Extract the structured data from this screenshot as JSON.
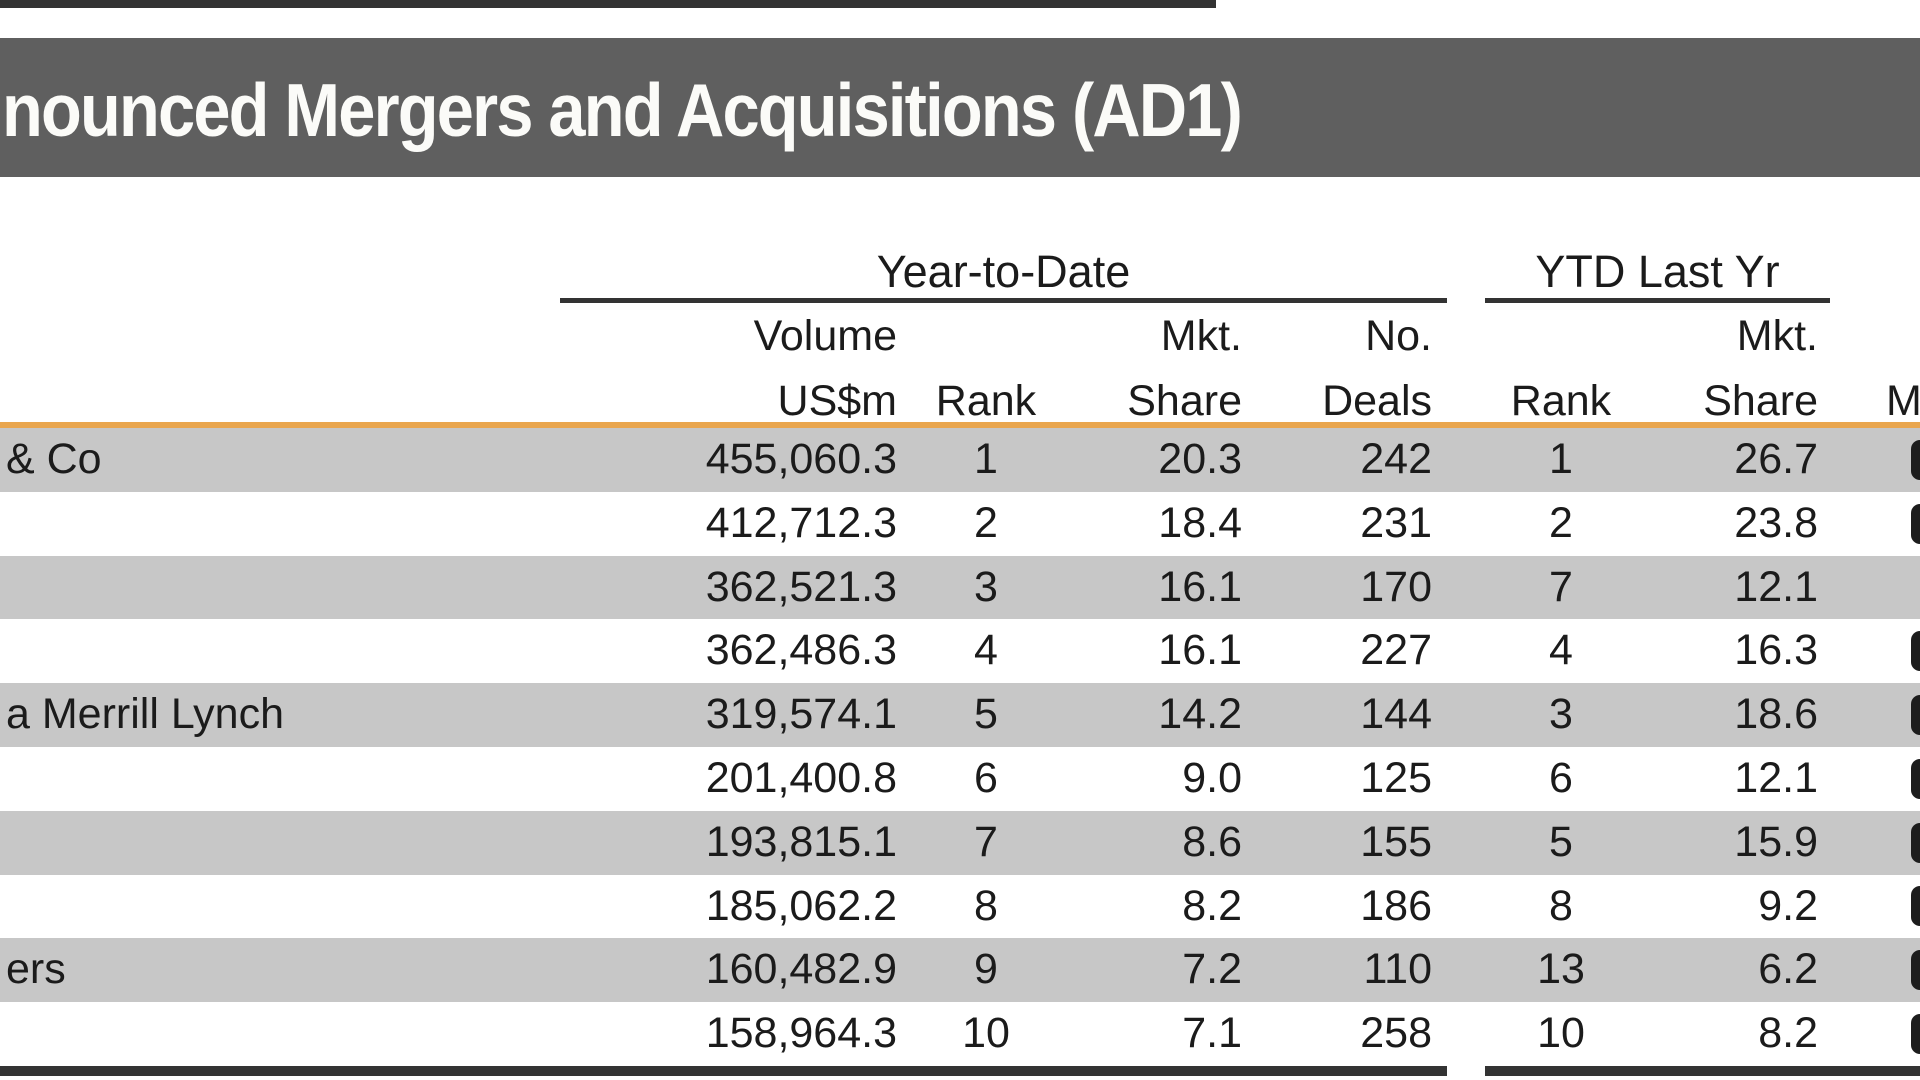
{
  "page": {
    "title": "nounced Mergers and Acquisitions (AD1)"
  },
  "header": {
    "group1_label": "Year-to-Date",
    "group2_label": "YTD Last Yr",
    "group3_label_cropped": "M",
    "line1": {
      "volume": "Volume",
      "mkt_share_ytd": "Mkt.",
      "no_deals": "No.",
      "mkt_share_last_yr": "Mkt."
    },
    "line2": {
      "volume_unit": "US$m",
      "rank_ytd": "Rank",
      "share_ytd": "Share",
      "deals": "Deals",
      "rank_last_yr": "Rank",
      "share_last_yr": "Share"
    }
  },
  "rows": [
    {
      "name": "& Co",
      "volume_usm": "455,060.3",
      "rank": "1",
      "mkt_share": "20.3",
      "no_deals": "242",
      "rank_last_yr": "1",
      "mkt_share_last_yr": "26.7",
      "edge_fragment": true
    },
    {
      "name": "",
      "volume_usm": "412,712.3",
      "rank": "2",
      "mkt_share": "18.4",
      "no_deals": "231",
      "rank_last_yr": "2",
      "mkt_share_last_yr": "23.8",
      "edge_fragment": true
    },
    {
      "name": "",
      "volume_usm": "362,521.3",
      "rank": "3",
      "mkt_share": "16.1",
      "no_deals": "170",
      "rank_last_yr": "7",
      "mkt_share_last_yr": "12.1",
      "edge_fragment": false
    },
    {
      "name": "",
      "volume_usm": "362,486.3",
      "rank": "4",
      "mkt_share": "16.1",
      "no_deals": "227",
      "rank_last_yr": "4",
      "mkt_share_last_yr": "16.3",
      "edge_fragment": true
    },
    {
      "name": "a Merrill Lynch",
      "volume_usm": "319,574.1",
      "rank": "5",
      "mkt_share": "14.2",
      "no_deals": "144",
      "rank_last_yr": "3",
      "mkt_share_last_yr": "18.6",
      "edge_fragment": true
    },
    {
      "name": "",
      "volume_usm": "201,400.8",
      "rank": "6",
      "mkt_share": "9.0",
      "no_deals": "125",
      "rank_last_yr": "6",
      "mkt_share_last_yr": "12.1",
      "edge_fragment": true
    },
    {
      "name": "",
      "volume_usm": "193,815.1",
      "rank": "7",
      "mkt_share": "8.6",
      "no_deals": "155",
      "rank_last_yr": "5",
      "mkt_share_last_yr": "15.9",
      "edge_fragment": true
    },
    {
      "name": "",
      "volume_usm": "185,062.2",
      "rank": "8",
      "mkt_share": "8.2",
      "no_deals": "186",
      "rank_last_yr": "8",
      "mkt_share_last_yr": "9.2",
      "edge_fragment": true
    },
    {
      "name": "ers",
      "volume_usm": "160,482.9",
      "rank": "9",
      "mkt_share": "7.2",
      "no_deals": "110",
      "rank_last_yr": "13",
      "mkt_share_last_yr": "6.2",
      "edge_fragment": true
    },
    {
      "name": "",
      "volume_usm": "158,964.3",
      "rank": "10",
      "mkt_share": "7.1",
      "no_deals": "258",
      "rank_last_yr": "10",
      "mkt_share_last_yr": "8.2",
      "edge_fragment": true
    }
  ],
  "colors": {
    "title_bar_bg": "#5f5f5f",
    "title_text": "#fbfbf8",
    "row_shade": "#c7c7c7",
    "accent_rule": "#e9a64e",
    "dark_rule": "#333333",
    "body_text": "#1b1b1b"
  }
}
